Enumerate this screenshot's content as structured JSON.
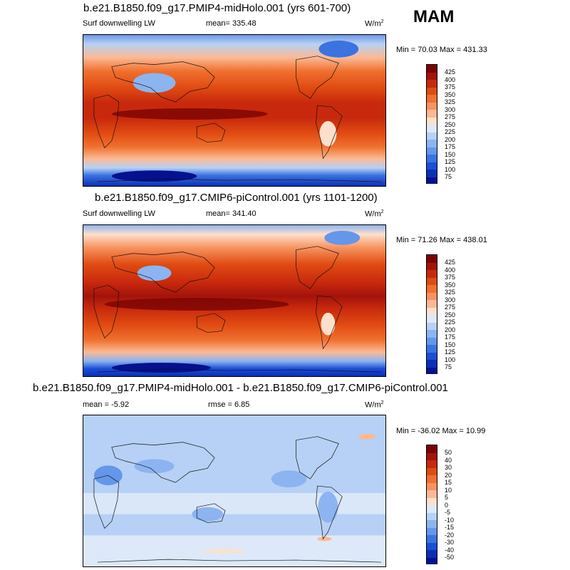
{
  "season": "MAM",
  "panels": [
    {
      "title": "b.e21.B1850.f09_g17.PMIP4-midHolo.001 (yrs 601-700)",
      "left_label": "Surf downwelling LW",
      "center_label": "mean= 335.48",
      "units": "W/m",
      "units_sup": "2",
      "minmax": "Min =  70.03 Max = 431.33",
      "colorbar_labels": [
        "425",
        "400",
        "375",
        "350",
        "325",
        "300",
        "275",
        "250",
        "225",
        "200",
        "175",
        "150",
        "125",
        "100",
        "75"
      ]
    },
    {
      "title": "b.e21.B1850.f09_g17.CMIP6-piControl.001 (yrs 1101-1200)",
      "left_label": "Surf downwelling LW",
      "center_label": "mean= 341.40",
      "units": "W/m",
      "units_sup": "2",
      "minmax": "Min =  71.26 Max = 438.01",
      "colorbar_labels": [
        "425",
        "400",
        "375",
        "350",
        "325",
        "300",
        "275",
        "250",
        "225",
        "200",
        "175",
        "150",
        "125",
        "100",
        "75"
      ]
    },
    {
      "title": "b.e21.B1850.f09_g17.PMIP4-midHolo.001 - b.e21.B1850.f09_g17.CMIP6-piControl.001",
      "left_label": "mean =  -5.92",
      "center_label": "rmse =  6.85",
      "units": "W/m",
      "units_sup": "2",
      "minmax": "Min = -36.02 Max =  10.99",
      "colorbar_labels": [
        "50",
        "40",
        "30",
        "20",
        "15",
        "10",
        "5",
        "0",
        "-5",
        "-10",
        "-15",
        "-20",
        "-30",
        "-40",
        "-50"
      ]
    }
  ],
  "colors": {
    "abs_scale": [
      "#7a0403",
      "#a3130b",
      "#c8290c",
      "#e04b12",
      "#f0702e",
      "#f7935e",
      "#fbb995",
      "#fde0cc",
      "#dde9f8",
      "#b6d1f5",
      "#8cb4f0",
      "#6496ea",
      "#3b73e0",
      "#1b4ed6",
      "#0c2fb8",
      "#06118f"
    ],
    "diff_scale": [
      "#7a0403",
      "#a3130b",
      "#c8290c",
      "#e04b12",
      "#f0702e",
      "#f7935e",
      "#fbb995",
      "#fde0cc",
      "#dde9f8",
      "#b6d1f5",
      "#8cb4f0",
      "#6496ea",
      "#3b73e0",
      "#1b4ed6",
      "#0c2fb8",
      "#06118f"
    ]
  }
}
